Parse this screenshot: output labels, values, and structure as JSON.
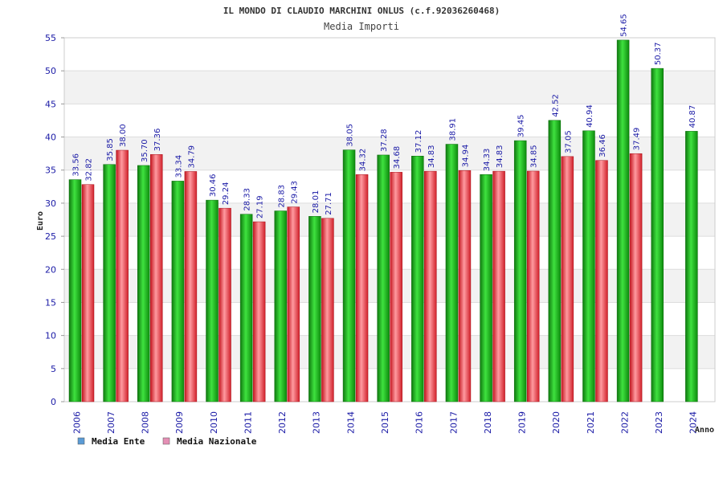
{
  "chart_data": {
    "type": "bar",
    "title": "IL MONDO DI CLAUDIO MARCHINI ONLUS (c.f.92036260468)",
    "subtitle": "Media Importi",
    "xlabel": "Anno",
    "ylabel": "Euro",
    "ylim": [
      0,
      55
    ],
    "ytick_step": 5,
    "grid": true,
    "legend_position": "bottom-left",
    "categories": [
      "2006",
      "2007",
      "2008",
      "2009",
      "2010",
      "2011",
      "2012",
      "2013",
      "2014",
      "2015",
      "2016",
      "2017",
      "2018",
      "2019",
      "2020",
      "2021",
      "2022",
      "2023",
      "2024"
    ],
    "series": [
      {
        "name": "Media Ente",
        "color": "#1db31d",
        "legend_color": "#5b9bd5",
        "values": [
          33.56,
          35.85,
          35.7,
          33.34,
          30.46,
          28.33,
          28.83,
          28.01,
          38.05,
          37.28,
          37.12,
          38.91,
          34.33,
          39.45,
          42.52,
          40.94,
          54.65,
          50.37,
          40.87
        ],
        "labels": [
          "33.56",
          "35.85",
          "35.70",
          "33.34",
          "30.46",
          "28.33",
          "28.83",
          "28.01",
          "38.05",
          "37.28",
          "37.12",
          "38.91",
          "34.33",
          "39.45",
          "42.52",
          "40.94",
          "54.65",
          "50.37",
          "40.87"
        ]
      },
      {
        "name": "Media Nazionale",
        "color": "#e8343c",
        "legend_color": "#e58fb5",
        "values": [
          32.82,
          38.0,
          37.36,
          34.79,
          29.24,
          27.19,
          29.43,
          27.71,
          34.32,
          34.68,
          34.83,
          34.94,
          34.83,
          34.85,
          37.05,
          36.46,
          37.49,
          null,
          null
        ],
        "labels": [
          "32.82",
          "38.00",
          "37.36",
          "34.79",
          "29.24",
          "27.19",
          "29.43",
          "27.71",
          "34.32",
          "34.68",
          "34.83",
          "34.94",
          "34.83",
          "34.85",
          "37.05",
          "36.46",
          "37.49",
          null,
          null
        ]
      }
    ]
  }
}
